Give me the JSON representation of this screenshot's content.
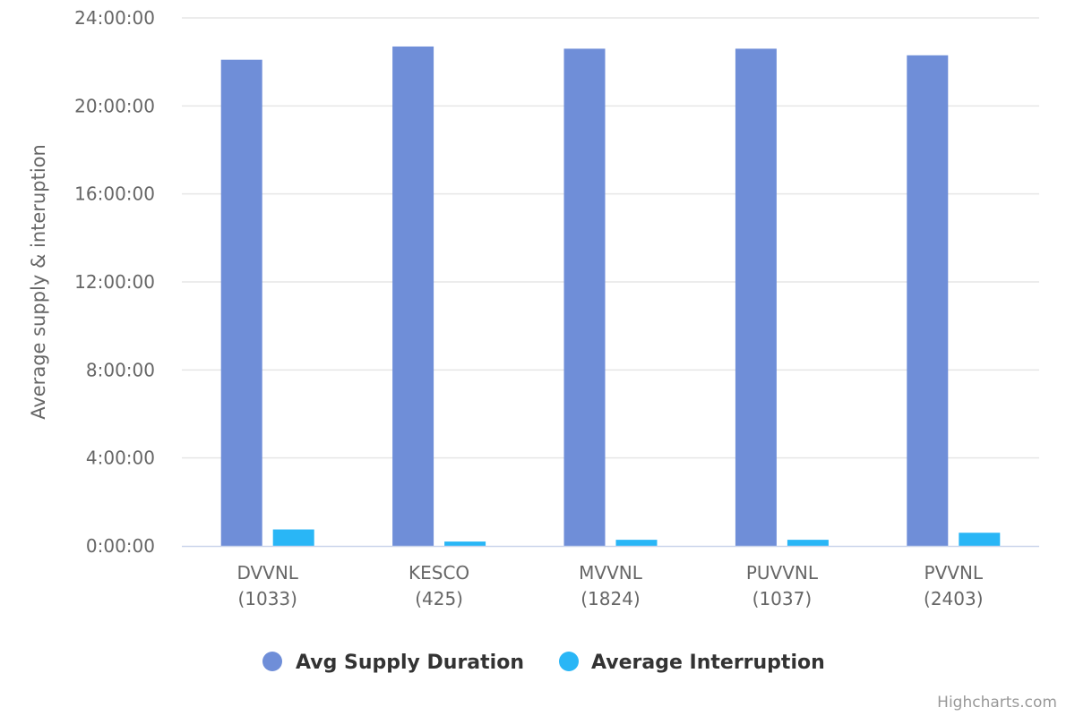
{
  "chart_data": {
    "type": "bar",
    "categories": [
      {
        "name": "DVVNL",
        "count": "(1033)"
      },
      {
        "name": "KESCO",
        "count": "(425)"
      },
      {
        "name": "MVVNL",
        "count": "(1824)"
      },
      {
        "name": "PUVVNL",
        "count": "(1037)"
      },
      {
        "name": "PVVNL",
        "count": "(2403)"
      }
    ],
    "series": [
      {
        "name": "Avg Supply Duration",
        "color": "#6f8ed8",
        "values": [
          22.1,
          22.7,
          22.6,
          22.6,
          22.3
        ]
      },
      {
        "name": "Average Interruption",
        "color": "#29b6f6",
        "values": [
          0.75,
          0.2,
          0.28,
          0.28,
          0.6
        ]
      }
    ],
    "ylabel": "Average supply & interuption",
    "ylim": [
      0,
      24
    ],
    "yticks": [
      {
        "value": 0,
        "label": "0:00:00"
      },
      {
        "value": 4,
        "label": "4:00:00"
      },
      {
        "value": 8,
        "label": "8:00:00"
      },
      {
        "value": 12,
        "label": "12:00:00"
      },
      {
        "value": 16,
        "label": "16:00:00"
      },
      {
        "value": 20,
        "label": "20:00:00"
      },
      {
        "value": 24,
        "label": "24:00:00"
      }
    ],
    "grid": true,
    "legend_position": "bottom-center",
    "credit": "Highcharts.com"
  }
}
